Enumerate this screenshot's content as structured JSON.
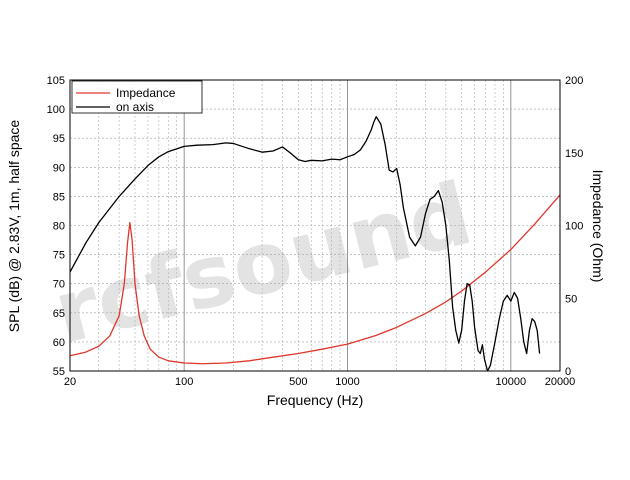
{
  "chart_data": {
    "type": "line",
    "xlabel": "Frequency (Hz)",
    "ylabel": "SPL (dB) @ 2.83V, 1m, half space",
    "y2label": "Impedance (Ohm)",
    "x_scale": "log",
    "xlim": [
      20,
      20000
    ],
    "ylim": [
      55,
      105
    ],
    "y2lim": [
      0,
      200
    ],
    "grid": true,
    "legend_position": "top-left",
    "x_ticks": [
      "20",
      "100",
      "500",
      "1000",
      "10000",
      "20000"
    ],
    "y_ticks": [
      "55",
      "60",
      "65",
      "70",
      "75",
      "80",
      "85",
      "90",
      "95",
      "100",
      "105"
    ],
    "y2_ticks": [
      "0",
      "50",
      "100",
      "150",
      "200"
    ],
    "watermark": "rcfsound",
    "series": [
      {
        "name": "Impedance",
        "color": "#e0372c",
        "axis": "right",
        "x": [
          20,
          25,
          30,
          35,
          40,
          43,
          45,
          46.5,
          48,
          50,
          53,
          57,
          62,
          70,
          80,
          100,
          130,
          180,
          250,
          350,
          500,
          700,
          1000,
          1500,
          2000,
          3000,
          4000,
          5000,
          7000,
          10000,
          14000,
          20000
        ],
        "y": [
          10.5,
          13,
          17,
          24,
          38,
          60,
          88,
          102,
          90,
          60,
          38,
          24,
          15,
          9.5,
          7,
          5.5,
          5,
          5.5,
          7,
          9.5,
          12,
          15,
          18.5,
          24.5,
          30,
          39.5,
          47.5,
          55,
          68,
          83.5,
          101,
          121
        ]
      },
      {
        "name": "on axis",
        "color": "#000000",
        "axis": "left",
        "x": [
          20,
          25,
          30,
          40,
          50,
          60,
          70,
          80,
          100,
          120,
          150,
          180,
          200,
          250,
          300,
          350,
          400,
          450,
          500,
          550,
          600,
          700,
          800,
          900,
          1000,
          1100,
          1200,
          1300,
          1400,
          1450,
          1500,
          1600,
          1700,
          1800,
          1900,
          2000,
          2100,
          2200,
          2400,
          2600,
          2800,
          3000,
          3200,
          3400,
          3600,
          3800,
          4000,
          4200,
          4400,
          4600,
          4800,
          5000,
          5200,
          5400,
          5600,
          5800,
          6000,
          6300,
          6500,
          6700,
          6900,
          7200,
          7500,
          8000,
          8500,
          9000,
          9500,
          10000,
          10500,
          11000,
          11500,
          12000,
          12500,
          13000,
          13500,
          14000,
          14500,
          15000
        ],
        "y": [
          72,
          77,
          80.5,
          85,
          88,
          90.3,
          91.8,
          92.7,
          93.6,
          93.8,
          93.9,
          94.2,
          94.1,
          93.2,
          92.6,
          92.8,
          93.5,
          92.4,
          91.3,
          91,
          91.2,
          91.1,
          91.4,
          91.3,
          91.8,
          92.2,
          93,
          94.5,
          96.5,
          97.8,
          98.7,
          97.4,
          93.9,
          89.5,
          89.2,
          89.8,
          87,
          83,
          78,
          76.5,
          78,
          82,
          84.5,
          85,
          86,
          84,
          80,
          74,
          66,
          62,
          59.8,
          62,
          67,
          70,
          69.8,
          67,
          62.5,
          58.5,
          58,
          59.5,
          57,
          53,
          56,
          60,
          64,
          67,
          68,
          67,
          68.5,
          67.5,
          64,
          60,
          58,
          62,
          64,
          63.5,
          62,
          58
        ]
      }
    ]
  }
}
